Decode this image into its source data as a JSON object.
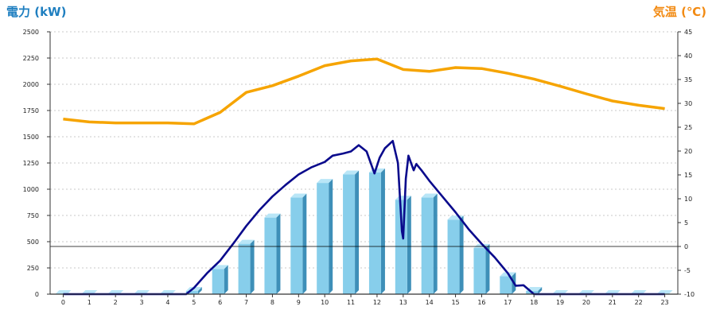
{
  "chart_data": {
    "type": "bar",
    "title": "",
    "ylabel_left": "電力 (kW)",
    "ylabel_right": "気温 (℃)",
    "categories": [
      "0",
      "1",
      "2",
      "3",
      "4",
      "5",
      "6",
      "7",
      "8",
      "9",
      "10",
      "11",
      "12",
      "13",
      "14",
      "15",
      "16",
      "17",
      "18",
      "19",
      "20",
      "21",
      "22",
      "23"
    ],
    "y_left_ticks": [
      "0",
      "250",
      "500",
      "750",
      "1000",
      "1250",
      "1500",
      "1750",
      "2000",
      "2250",
      "2500"
    ],
    "y_right_ticks": [
      "-10",
      "-5",
      "0",
      "5",
      "10",
      "15",
      "20",
      "25",
      "30",
      "35",
      "40",
      "45"
    ],
    "ylim_left": [
      0,
      2500
    ],
    "ylim_right": [
      -10,
      45
    ],
    "grid": "horizontal dashed",
    "series": [
      {
        "type": "bar",
        "axis": "left",
        "values": [
          0,
          0,
          0,
          0,
          0,
          30,
          240,
          480,
          730,
          920,
          1060,
          1140,
          1160,
          900,
          920,
          710,
          440,
          170,
          30,
          0,
          0,
          0,
          0,
          0
        ]
      },
      {
        "type": "line",
        "axis": "left",
        "points": [
          [
            0,
            0
          ],
          [
            1,
            0
          ],
          [
            2,
            0
          ],
          [
            3,
            0
          ],
          [
            4,
            0
          ],
          [
            4.7,
            0
          ],
          [
            5,
            60
          ],
          [
            5.5,
            200
          ],
          [
            6,
            320
          ],
          [
            6.5,
            480
          ],
          [
            7,
            650
          ],
          [
            7.5,
            800
          ],
          [
            8,
            930
          ],
          [
            8.5,
            1040
          ],
          [
            9,
            1140
          ],
          [
            9.5,
            1210
          ],
          [
            10,
            1260
          ],
          [
            10.3,
            1320
          ],
          [
            10.7,
            1340
          ],
          [
            11,
            1360
          ],
          [
            11.3,
            1420
          ],
          [
            11.6,
            1360
          ],
          [
            11.9,
            1150
          ],
          [
            12.1,
            1300
          ],
          [
            12.3,
            1390
          ],
          [
            12.6,
            1460
          ],
          [
            12.8,
            1250
          ],
          [
            12.95,
            600
          ],
          [
            13,
            530
          ],
          [
            13.1,
            1100
          ],
          [
            13.2,
            1320
          ],
          [
            13.4,
            1180
          ],
          [
            13.5,
            1240
          ],
          [
            13.7,
            1180
          ],
          [
            14,
            1080
          ],
          [
            14.5,
            930
          ],
          [
            15,
            780
          ],
          [
            15.5,
            620
          ],
          [
            16,
            480
          ],
          [
            16.5,
            350
          ],
          [
            17,
            200
          ],
          [
            17.3,
            80
          ],
          [
            17.6,
            85
          ],
          [
            18,
            0
          ],
          [
            19,
            0
          ],
          [
            20,
            0
          ],
          [
            21,
            0
          ],
          [
            22,
            0
          ],
          [
            23,
            0
          ]
        ],
        "color": "#0a0a8c"
      },
      {
        "type": "line",
        "axis": "right",
        "x": [
          0,
          1,
          2,
          3,
          4,
          5,
          6,
          7,
          8,
          9,
          10,
          11,
          12,
          13,
          14,
          15,
          16,
          17,
          18,
          19,
          20,
          21,
          22,
          23
        ],
        "values": [
          26.7,
          26.1,
          25.9,
          25.9,
          25.9,
          25.7,
          28.1,
          32.3,
          33.7,
          35.7,
          37.9,
          38.9,
          39.3,
          37.1,
          36.7,
          37.5,
          37.3,
          36.3,
          35.1,
          33.6,
          32.0,
          30.5,
          29.6,
          28.9
        ],
        "color": "#f6a400"
      }
    ],
    "colors": {
      "bar": "#87ceeb",
      "bar_side": "#3e8fb8",
      "bar_top": "#b9e6f7",
      "power_line": "#0a0a8c",
      "temp_line": "#f6a400",
      "grid": "#c8c8c8"
    }
  }
}
